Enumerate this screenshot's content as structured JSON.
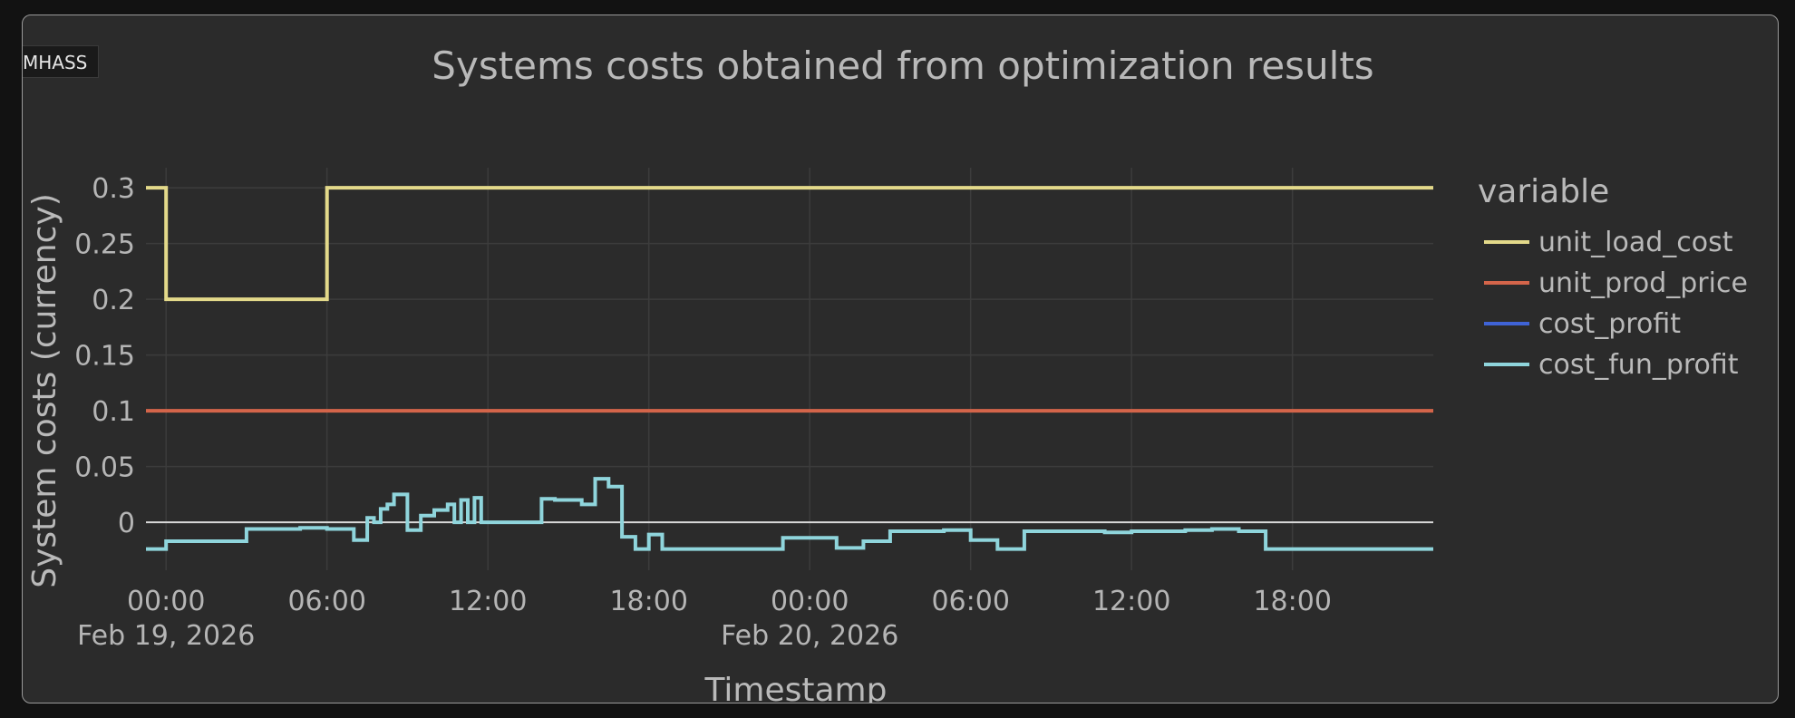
{
  "app": {
    "badge_label": "MHASS"
  },
  "colors": {
    "background": "#2b2b2b",
    "grid": "#3c3c3c",
    "zero_line": "#d9d9d9",
    "text": "#b9b9b9"
  },
  "chart_data": {
    "type": "line",
    "line_shape": "step",
    "title": "Systems costs obtained from optimization results",
    "xlabel": "Timestamp",
    "ylabel": "System costs (currency)",
    "legend_title": "variable",
    "legend_position": "right",
    "grid": true,
    "x_range": [
      "2026-02-18 23:15",
      "2026-02-20 23:15"
    ],
    "ylim": [
      -0.043,
      0.318
    ],
    "y_ticks": [
      0,
      0.05,
      0.1,
      0.15,
      0.2,
      0.25,
      0.3
    ],
    "y_tick_labels": [
      "0",
      "0.05",
      "0.1",
      "0.15",
      "0.2",
      "0.25",
      "0.3"
    ],
    "x_ticks": [
      {
        "t": "2026-02-19 00:00",
        "label": "00:00",
        "sublabel": "Feb 19, 2026"
      },
      {
        "t": "2026-02-19 06:00",
        "label": "06:00",
        "sublabel": ""
      },
      {
        "t": "2026-02-19 12:00",
        "label": "12:00",
        "sublabel": ""
      },
      {
        "t": "2026-02-19 18:00",
        "label": "18:00",
        "sublabel": ""
      },
      {
        "t": "2026-02-20 00:00",
        "label": "00:00",
        "sublabel": "Feb 20, 2026"
      },
      {
        "t": "2026-02-20 06:00",
        "label": "06:00",
        "sublabel": ""
      },
      {
        "t": "2026-02-20 12:00",
        "label": "12:00",
        "sublabel": ""
      },
      {
        "t": "2026-02-20 18:00",
        "label": "18:00",
        "sublabel": ""
      }
    ],
    "series": [
      {
        "name": "unit_load_cost",
        "color": "#e3d98a",
        "points": [
          [
            "2026-02-18 23:15",
            0.3
          ],
          [
            "2026-02-19 00:00",
            0.2
          ],
          [
            "2026-02-19 06:00",
            0.3
          ],
          [
            "2026-02-20 23:15",
            0.3
          ]
        ]
      },
      {
        "name": "unit_prod_price",
        "color": "#d4654a",
        "points": [
          [
            "2026-02-18 23:15",
            0.1
          ],
          [
            "2026-02-20 23:15",
            0.1
          ]
        ]
      },
      {
        "name": "cost_profit",
        "color": "#3f63d6",
        "points": []
      },
      {
        "name": "cost_fun_profit",
        "color": "#8fd5dc",
        "points": [
          [
            "2026-02-18 23:15",
            -0.024
          ],
          [
            "2026-02-19 00:00",
            -0.017
          ],
          [
            "2026-02-19 03:00",
            -0.006
          ],
          [
            "2026-02-19 05:00",
            -0.005
          ],
          [
            "2026-02-19 06:00",
            -0.006
          ],
          [
            "2026-02-19 07:00",
            -0.016
          ],
          [
            "2026-02-19 07:30",
            0.004
          ],
          [
            "2026-02-19 07:45",
            0.0
          ],
          [
            "2026-02-19 08:00",
            0.012
          ],
          [
            "2026-02-19 08:15",
            0.016
          ],
          [
            "2026-02-19 08:30",
            0.025
          ],
          [
            "2026-02-19 09:00",
            -0.007
          ],
          [
            "2026-02-19 09:30",
            0.006
          ],
          [
            "2026-02-19 10:00",
            0.011
          ],
          [
            "2026-02-19 10:30",
            0.016
          ],
          [
            "2026-02-19 10:45",
            0.0
          ],
          [
            "2026-02-19 11:00",
            0.02
          ],
          [
            "2026-02-19 11:15",
            0.0
          ],
          [
            "2026-02-19 11:30",
            0.022
          ],
          [
            "2026-02-19 11:45",
            0.0
          ],
          [
            "2026-02-19 12:00",
            0.0
          ],
          [
            "2026-02-19 14:00",
            0.021
          ],
          [
            "2026-02-19 14:30",
            0.02
          ],
          [
            "2026-02-19 15:30",
            0.016
          ],
          [
            "2026-02-19 16:00",
            0.039
          ],
          [
            "2026-02-19 16:30",
            0.032
          ],
          [
            "2026-02-19 17:00",
            -0.013
          ],
          [
            "2026-02-19 17:30",
            -0.024
          ],
          [
            "2026-02-19 18:00",
            -0.011
          ],
          [
            "2026-02-19 18:30",
            -0.024
          ],
          [
            "2026-02-19 23:00",
            -0.014
          ],
          [
            "2026-02-20 01:00",
            -0.023
          ],
          [
            "2026-02-20 02:00",
            -0.017
          ],
          [
            "2026-02-20 03:00",
            -0.008
          ],
          [
            "2026-02-20 04:00",
            -0.008
          ],
          [
            "2026-02-20 05:00",
            -0.007
          ],
          [
            "2026-02-20 06:00",
            -0.016
          ],
          [
            "2026-02-20 07:00",
            -0.024
          ],
          [
            "2026-02-20 08:00",
            -0.008
          ],
          [
            "2026-02-20 11:00",
            -0.009
          ],
          [
            "2026-02-20 12:00",
            -0.008
          ],
          [
            "2026-02-20 14:00",
            -0.007
          ],
          [
            "2026-02-20 15:00",
            -0.006
          ],
          [
            "2026-02-20 16:00",
            -0.008
          ],
          [
            "2026-02-20 17:00",
            -0.024
          ],
          [
            "2026-02-20 23:15",
            -0.024
          ]
        ]
      }
    ]
  }
}
